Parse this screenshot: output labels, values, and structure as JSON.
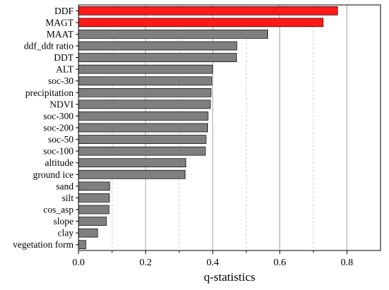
{
  "chart_data": {
    "type": "bar",
    "orientation": "horizontal",
    "title": "",
    "xlabel": "q-statistics",
    "ylabel": "",
    "xlim": [
      0,
      0.9
    ],
    "xticks": [
      0.0,
      0.2,
      0.4,
      0.6,
      0.8
    ],
    "xtick_labels": [
      "0.0",
      "0.2",
      "0.4",
      "0.6",
      "0.8"
    ],
    "minor_ticks": [
      0.1,
      0.3,
      0.5,
      0.7
    ],
    "grid": "vertical",
    "highlight_color": "#ff1a1a",
    "bar_color": "#7f7f7f",
    "categories": [
      "DDF",
      "MAGT",
      "MAAT",
      "ddf_ddt ratio",
      "DDT",
      "ALT",
      "soc-30",
      "precipitation",
      "NDVI",
      "soc-300",
      "soc-200",
      "soc-50",
      "soc-100",
      "altitude",
      "ground ice",
      "sand",
      "silt",
      "cos_asp",
      "slope",
      "clay",
      "vegetation form"
    ],
    "values": [
      0.772,
      0.729,
      0.564,
      0.472,
      0.471,
      0.4,
      0.397,
      0.395,
      0.393,
      0.386,
      0.385,
      0.38,
      0.378,
      0.32,
      0.318,
      0.093,
      0.092,
      0.091,
      0.083,
      0.057,
      0.022
    ],
    "highlighted": [
      true,
      true,
      false,
      false,
      false,
      false,
      false,
      false,
      false,
      false,
      false,
      false,
      false,
      false,
      false,
      false,
      false,
      false,
      false,
      false,
      false
    ]
  }
}
